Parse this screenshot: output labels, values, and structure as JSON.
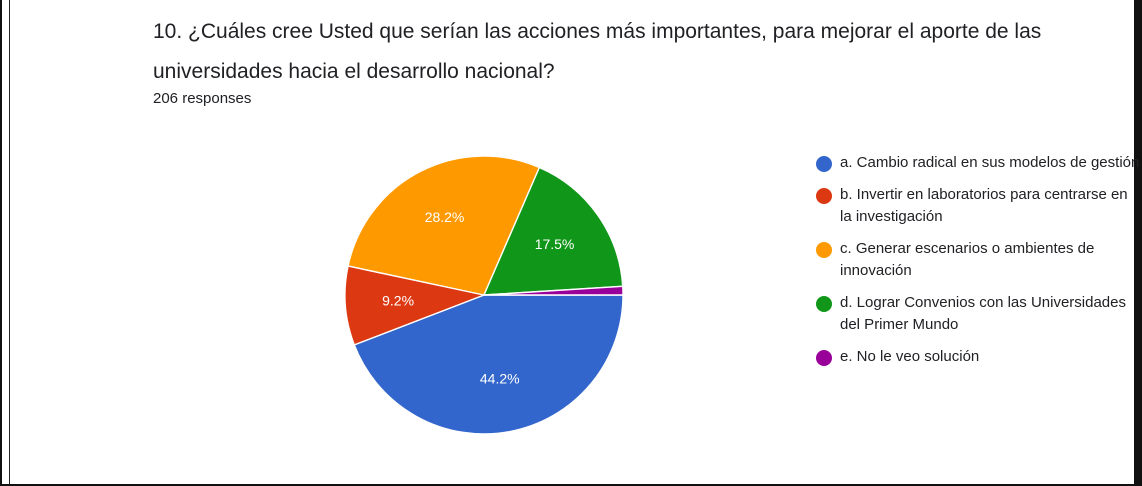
{
  "question": {
    "title": "10. ¿Cuáles cree Usted que serían las acciones más importantes, para mejorar el aporte de las universidades hacia el desarrollo nacional?",
    "response_count": "206 responses"
  },
  "colors": {
    "blue": "#3366cc",
    "red": "#dc3912",
    "orange": "#ff9900",
    "green": "#109618",
    "purple": "#990099"
  },
  "chart_data": {
    "type": "pie",
    "title": "10. ¿Cuáles cree Usted que serían las acciones más importantes, para mejorar el aporte de las universidades hacia el desarrollo nacional?",
    "categories": [
      "a. Cambio radical en sus modelos de gestión",
      "b. Invertir en laboratorios para centrarse en la investigación",
      "c. Generar escenarios o ambientes de innovación",
      "d. Lograr Convenios con las Universidades del Primer Mundo",
      "e. No le veo solución"
    ],
    "values": [
      44.2,
      9.2,
      28.2,
      17.5,
      1.0
    ],
    "data_labels": [
      "44.2%",
      "9.2%",
      "28.2%",
      "17.5%",
      ""
    ],
    "slice_colors": [
      "#3366cc",
      "#dc3912",
      "#ff9900",
      "#109618",
      "#990099"
    ],
    "legend_position": "right"
  },
  "legend": {
    "items": [
      {
        "label": "a. Cambio radical en sus modelos de gestión",
        "color": "#3366cc"
      },
      {
        "label": "b. Invertir en laboratorios para centrarse en la investigación",
        "color": "#dc3912"
      },
      {
        "label": "c. Generar escenarios o ambientes de innovación",
        "color": "#ff9900"
      },
      {
        "label": "d. Lograr Convenios con las Universidades del Primer Mundo",
        "color": "#109618"
      },
      {
        "label": "e. No le veo solución",
        "color": "#990099"
      }
    ]
  }
}
